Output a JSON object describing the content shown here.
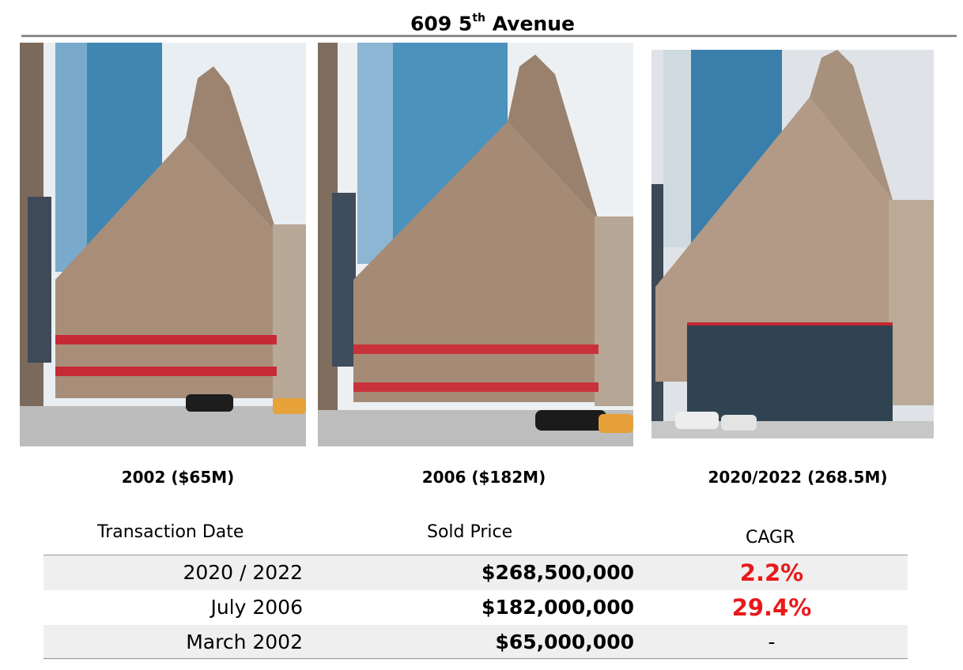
{
  "title": {
    "main": "609 5",
    "sup": "th",
    "rest": " Avenue"
  },
  "photos": [
    {
      "caption": "2002 ($65M)"
    },
    {
      "caption": "2006 ($182M)"
    },
    {
      "caption": "2020/2022 (268.5M)"
    }
  ],
  "table": {
    "headers": {
      "date": "Transaction Date",
      "price": "Sold Price",
      "cagr": "CAGR"
    },
    "rows": [
      {
        "date": "2020 / 2022",
        "price": "$268,500,000",
        "cagr": "2.2%"
      },
      {
        "date": "July 2006",
        "price": "$182,000,000",
        "cagr": "29.4%"
      },
      {
        "date": "March 2002",
        "price": "$65,000,000",
        "cagr": "-"
      }
    ]
  },
  "colors": {
    "cagr_highlight": "#e8191b",
    "rule": "#8c8c8c",
    "row_shade": "#efefef"
  }
}
